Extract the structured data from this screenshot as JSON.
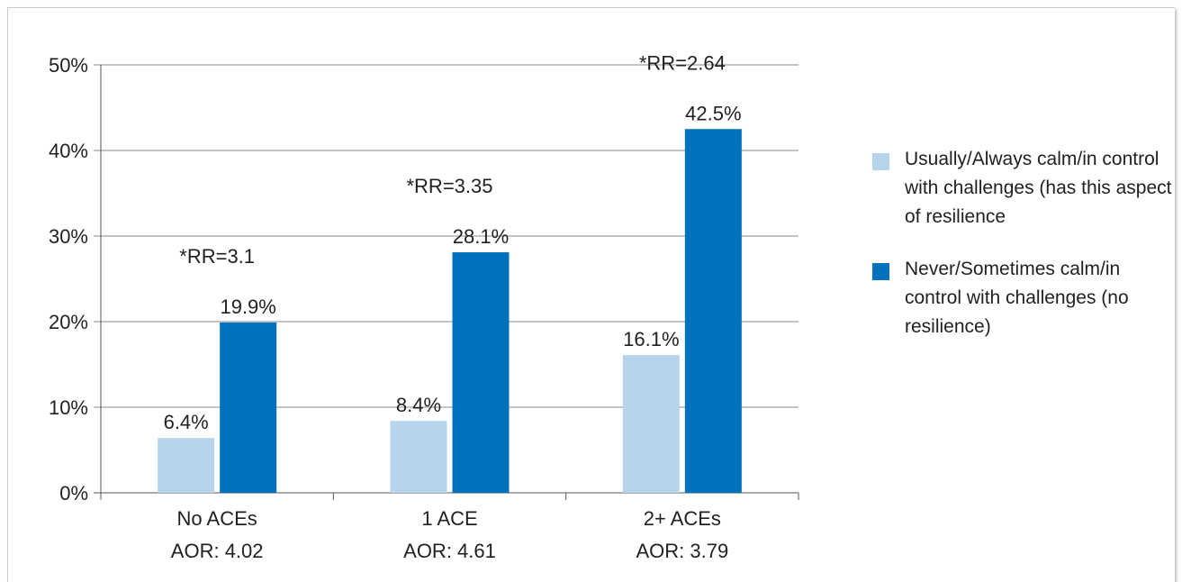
{
  "chart_data": {
    "type": "bar",
    "title": "",
    "xlabel": "",
    "ylabel": "",
    "ylim": [
      0,
      50
    ],
    "yticks": [
      "0%",
      "10%",
      "20%",
      "30%",
      "40%",
      "50%"
    ],
    "ytick_values": [
      0,
      10,
      20,
      30,
      40,
      50
    ],
    "grid": true,
    "legend_position": "right",
    "categories": [
      {
        "name": "No ACEs",
        "sub": "AOR: 4.02"
      },
      {
        "name": "1 ACE",
        "sub": "AOR: 4.61"
      },
      {
        "name": "2+ ACEs",
        "sub": "AOR: 3.79"
      }
    ],
    "series": [
      {
        "name": "Usually/Always calm/in control with challenges (has this aspect of resilience",
        "color": "#b6d5ec",
        "values": [
          6.4,
          8.4,
          16.1
        ],
        "labels": [
          "6.4%",
          "8.4%",
          "16.1%"
        ]
      },
      {
        "name": "Never/Sometimes calm/in control with challenges (no resilience)",
        "color": "#0071bc",
        "values": [
          19.9,
          28.1,
          42.5
        ],
        "labels": [
          "19.9%",
          "28.1%",
          "42.5%"
        ]
      }
    ],
    "annotations": [
      "*RR=3.1",
      "*RR=3.35",
      "*RR=2.64"
    ]
  }
}
